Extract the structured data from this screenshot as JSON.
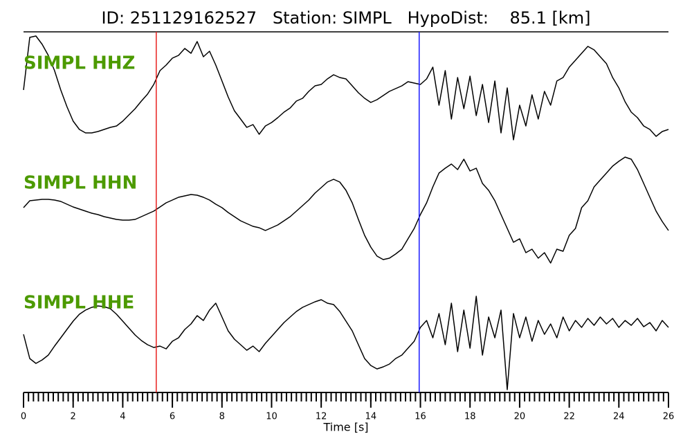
{
  "chart_data": {
    "type": "waveform",
    "title": "ID: 251129162527   Station: SIMPL   HypoDist:    85.1 [km]",
    "xlabel": "Time [s]",
    "xlim": [
      0,
      26
    ],
    "xticks": [
      0,
      2,
      4,
      6,
      8,
      10,
      12,
      14,
      16,
      18,
      20,
      22,
      24,
      26
    ],
    "xminor": 0.2,
    "ylim": [
      -85,
      85
    ],
    "label_color": "#4c9a00",
    "markers": [
      {
        "x": 5.35,
        "color": "#e8201f"
      },
      {
        "x": 15.95,
        "color": "#1a1aff"
      }
    ],
    "x": [
      0,
      0.25,
      0.5,
      0.75,
      1,
      1.25,
      1.5,
      1.75,
      2,
      2.25,
      2.5,
      2.75,
      3,
      3.25,
      3.5,
      3.75,
      4,
      4.25,
      4.5,
      4.75,
      5,
      5.25,
      5.5,
      5.75,
      6,
      6.25,
      6.5,
      6.75,
      7,
      7.25,
      7.5,
      7.75,
      8,
      8.25,
      8.5,
      8.75,
      9,
      9.25,
      9.5,
      9.75,
      10,
      10.25,
      10.5,
      10.75,
      11,
      11.25,
      11.5,
      11.75,
      12,
      12.25,
      12.5,
      12.75,
      13,
      13.25,
      13.5,
      13.75,
      14,
      14.25,
      14.5,
      14.75,
      15,
      15.25,
      15.5,
      15.75,
      16,
      16.25,
      16.5,
      16.75,
      17,
      17.25,
      17.5,
      17.75,
      18,
      18.25,
      18.5,
      18.75,
      19,
      19.25,
      19.5,
      19.75,
      20,
      20.25,
      20.5,
      20.75,
      21,
      21.25,
      21.5,
      21.75,
      22,
      22.25,
      22.5,
      22.75,
      23,
      23.25,
      23.5,
      23.75,
      24,
      24.25,
      24.5,
      24.75,
      25,
      25.25,
      25.5,
      25.75,
      26
    ],
    "series": [
      {
        "name": "SIMPL HHZ",
        "color": "#000000",
        "values": [
          2,
          78,
          80,
          68,
          52,
          30,
          2,
          -22,
          -43,
          -55,
          -60,
          -60,
          -58,
          -55,
          -52,
          -50,
          -43,
          -34,
          -25,
          -14,
          -4,
          10,
          30,
          38,
          48,
          52,
          62,
          55,
          72,
          50,
          58,
          38,
          15,
          -8,
          -28,
          -40,
          -52,
          -48,
          -62,
          -50,
          -45,
          -38,
          -30,
          -24,
          -14,
          -10,
          0,
          8,
          10,
          18,
          24,
          20,
          18,
          8,
          -2,
          -10,
          -16,
          -12,
          -6,
          0,
          4,
          8,
          14,
          12,
          10,
          18,
          35,
          -20,
          30,
          -40,
          20,
          -25,
          22,
          -35,
          10,
          -45,
          15,
          -60,
          5,
          -70,
          -20,
          -50,
          -5,
          -40,
          0,
          -20,
          15,
          20,
          35,
          45,
          55,
          65,
          60,
          50,
          40,
          20,
          5,
          -15,
          -30,
          -38,
          -50,
          -55,
          -65,
          -58,
          -55
        ]
      },
      {
        "name": "SIMPL HHN",
        "color": "#000000",
        "values": [
          5,
          15,
          16,
          17,
          17,
          16,
          14,
          10,
          6,
          3,
          0,
          -3,
          -5,
          -8,
          -10,
          -12,
          -13,
          -13,
          -12,
          -8,
          -4,
          0,
          6,
          12,
          16,
          20,
          22,
          24,
          23,
          20,
          16,
          10,
          5,
          -2,
          -8,
          -14,
          -18,
          -22,
          -24,
          -28,
          -24,
          -20,
          -14,
          -8,
          0,
          8,
          16,
          26,
          34,
          42,
          46,
          42,
          30,
          12,
          -12,
          -35,
          -52,
          -65,
          -70,
          -68,
          -62,
          -55,
          -40,
          -25,
          -5,
          12,
          35,
          55,
          62,
          68,
          60,
          75,
          58,
          62,
          40,
          30,
          15,
          -5,
          -25,
          -45,
          -40,
          -60,
          -55,
          -68,
          -60,
          -75,
          -55,
          -58,
          -35,
          -25,
          5,
          15,
          35,
          45,
          55,
          65,
          72,
          78,
          75,
          60,
          40,
          20,
          0,
          -15,
          -28
        ]
      },
      {
        "name": "SIMPL HHE",
        "color": "#000000",
        "values": [
          -5,
          -40,
          -47,
          -42,
          -35,
          -22,
          -10,
          2,
          14,
          24,
          30,
          34,
          36,
          35,
          32,
          24,
          14,
          4,
          -6,
          -14,
          -20,
          -24,
          -22,
          -26,
          -15,
          -10,
          2,
          10,
          22,
          15,
          30,
          40,
          20,
          0,
          -12,
          -20,
          -28,
          -22,
          -30,
          -18,
          -8,
          2,
          12,
          20,
          28,
          34,
          38,
          42,
          45,
          40,
          38,
          28,
          14,
          0,
          -20,
          -40,
          -50,
          -55,
          -52,
          -48,
          -40,
          -35,
          -25,
          -15,
          5,
          15,
          -10,
          25,
          -20,
          40,
          -30,
          30,
          -25,
          50,
          -35,
          20,
          -10,
          30,
          -85,
          25,
          -10,
          20,
          -15,
          15,
          -5,
          10,
          -10,
          20,
          0,
          15,
          5,
          18,
          8,
          20,
          10,
          18,
          5,
          15,
          8,
          18,
          6,
          12,
          0,
          15,
          5
        ]
      }
    ]
  }
}
